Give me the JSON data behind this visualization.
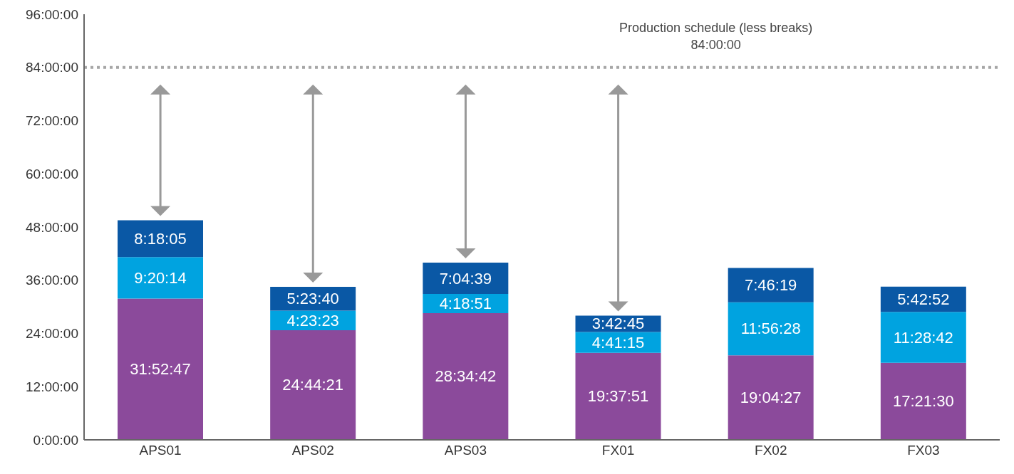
{
  "chart_data": {
    "type": "bar",
    "stacked": true,
    "categories": [
      "APS01",
      "APS02",
      "APS03",
      "FX01",
      "FX02",
      "FX03"
    ],
    "series": [
      {
        "color": "#8b4a9b",
        "values": [
          31.8797,
          24.7392,
          28.5783,
          19.6308,
          19.0742,
          17.3583
        ],
        "value_labels": [
          "31:52:47",
          "24:44:21",
          "28:34:42",
          "19:37:51",
          "19:04:27",
          "17:21:30"
        ]
      },
      {
        "color": "#00a3e0",
        "values": [
          9.3372,
          4.3897,
          4.3142,
          4.6875,
          11.9411,
          11.4783
        ],
        "value_labels": [
          "9:20:14",
          "4:23:23",
          "4:18:51",
          "4:41:15",
          "11:56:28",
          "11:28:42"
        ]
      },
      {
        "color": "#0a58a5",
        "values": [
          8.3014,
          5.3944,
          7.0775,
          3.7125,
          7.7719,
          5.7144
        ],
        "value_labels": [
          "8:18:05",
          "5:23:40",
          "7:04:39",
          "3:42:45",
          "7:46:19",
          "5:42:52"
        ]
      }
    ],
    "ylim": [
      0,
      96
    ],
    "yticks": [
      {
        "value": 0,
        "label": "0:00:00"
      },
      {
        "value": 12,
        "label": "12:00:00"
      },
      {
        "value": 24,
        "label": "24:00:00"
      },
      {
        "value": 36,
        "label": "36:00:00"
      },
      {
        "value": 48,
        "label": "48:00:00"
      },
      {
        "value": 60,
        "label": "60:00:00"
      },
      {
        "value": 72,
        "label": "72:00:00"
      },
      {
        "value": 84,
        "label": "84:00:00"
      },
      {
        "value": 96,
        "label": "96:00:00"
      }
    ],
    "ref_lines": [
      {
        "axis": "y",
        "value": 84,
        "label": "Production schedule (less breaks)\n84:00:00",
        "color": "#a6a6a6",
        "line_style": "dotted"
      }
    ],
    "grid": false,
    "legend": false
  }
}
